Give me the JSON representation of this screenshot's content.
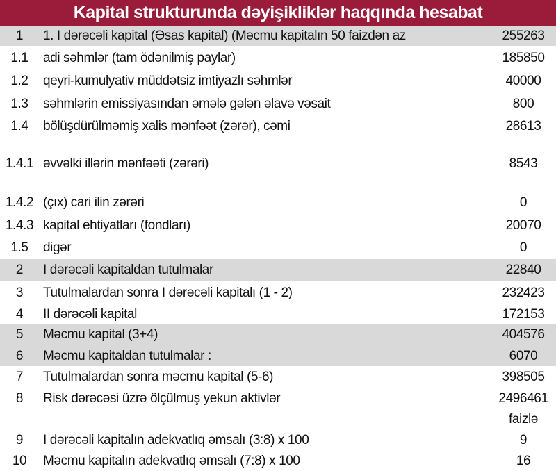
{
  "title": "Kapital strukturunda dəyişikliklər haqqında hesabat",
  "colors": {
    "header_bg": "#9b1b3a",
    "highlight_row_bg": "#d9d9d9"
  },
  "rows": [
    {
      "index": "1",
      "label": "1. I dərəcəli kapital (Əsas kapital) (Məcmu kapitalın 50 faizdən  az",
      "value": "255263",
      "highlight": true
    },
    {
      "index": "1.1",
      "label": "adi səhmlər (tam ödənilmiş paylar)",
      "value": "185850",
      "highlight": false
    },
    {
      "index": "1.2",
      "label": "qeyri-kumulyativ müddətsiz imtiyazlı səhmlər",
      "value": "40000",
      "highlight": false
    },
    {
      "index": "1.3",
      "label": "səhmlərin emissiyasından əmələ gələn  əlavə vəsait",
      "value": "800",
      "highlight": false
    },
    {
      "index": "1.4",
      "label": "bölüşdürülməmiş xalis mənfəət (zərər), cəmi",
      "value": "28613",
      "highlight": false
    },
    {
      "index": "1.4.1",
      "label": "əvvəlki illərin mənfəəti (zərəri)",
      "value": "8543",
      "highlight": false
    },
    {
      "index": "1.4.2",
      "label": "(çıx) cari ilin zərəri",
      "value": "0",
      "highlight": false
    },
    {
      "index": "1.4.3",
      "label": "kapital ehtiyatları (fondları)",
      "value": "20070",
      "highlight": false
    },
    {
      "index": "1.5",
      "label": "digər",
      "value": "0",
      "highlight": false
    },
    {
      "index": "2",
      "label": "I dərəcəli kapitaldan  tutulmalar",
      "value": "22840",
      "highlight": true
    },
    {
      "index": "3",
      "label": "Tutulmalardan  sonra I dərəcəli kapitalı (1 - 2)",
      "value": "232423",
      "highlight": false
    },
    {
      "index": "4",
      "label": "II dərəcəli  kapital",
      "value": "172153",
      "highlight": false
    },
    {
      "index": "5",
      "label": "Məcmu kapital (3+4)",
      "value": "404576",
      "highlight": true
    },
    {
      "index": "6",
      "label": "Məcmu kapitaldan tutulmalar :",
      "value": "6070",
      "highlight": true
    },
    {
      "index": "7",
      "label": "Tutulmalardan sonra məcmu kapital (5-6)",
      "value": "398505",
      "highlight": false
    },
    {
      "index": "8",
      "label": "Risk dərəcəsi üzrə ölçülmuş  yekun aktivlər",
      "value": "2496461",
      "highlight": false
    },
    {
      "index": "",
      "label": "",
      "value": "faizlə",
      "highlight": false
    },
    {
      "index": "9",
      "label": "I dərəcəli  kapitalın  adekvatlıq əmsalı (3:8) x 100",
      "value": "9",
      "highlight": false
    },
    {
      "index": "10",
      "label": "Məcmu kapitalın  adekvatlıq  əmsalı (7:8) x 100",
      "value": "16",
      "highlight": false
    }
  ]
}
